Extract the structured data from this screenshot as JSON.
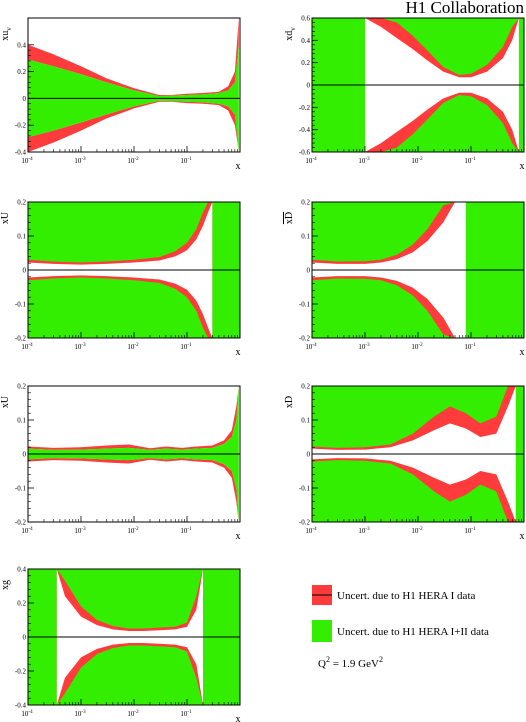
{
  "figure": {
    "title": "H1 Collaboration",
    "scale_label": "Q",
    "scale_sup": "2",
    "scale_value": " = 1.9 GeV",
    "scale_unit_sup": "2"
  },
  "legend": [
    {
      "label": "Uncert. due to H1 HERA I data",
      "color": "#ff3b3b"
    },
    {
      "label": "Uncert. due to H1 HERA I+II data",
      "color": "#33ee00"
    }
  ],
  "colors": {
    "hera1": "#ff3b3b",
    "hera12": "#33ee00",
    "axis": "#000000"
  },
  "chart_data": [
    {
      "type": "area",
      "ylabel": "xu",
      "ylabel_sub": "v",
      "xlabel": "x",
      "xscale": "log",
      "xlim": [
        0.0001,
        1
      ],
      "ylim": [
        -0.4,
        0.6
      ],
      "yticks": [
        {
          "v": -0.4,
          "t": "-0.4"
        },
        {
          "v": -0.2,
          "t": "-0.2"
        },
        {
          "v": 0,
          "t": "0"
        },
        {
          "v": 0.2,
          "t": "0.2"
        },
        {
          "v": 0.4,
          "t": "0.4"
        }
      ],
      "green_full": false,
      "x": [
        0.0001,
        0.0003,
        0.001,
        0.003,
        0.01,
        0.03,
        0.05,
        0.1,
        0.2,
        0.4,
        0.6,
        0.8,
        0.95
      ],
      "green_up": [
        0.29,
        0.24,
        0.18,
        0.12,
        0.06,
        0.018,
        0.02,
        0.025,
        0.03,
        0.04,
        0.06,
        0.12,
        0.4
      ],
      "red_up": [
        0.4,
        0.33,
        0.24,
        0.15,
        0.075,
        0.025,
        0.025,
        0.035,
        0.04,
        0.05,
        0.09,
        0.2,
        0.6
      ]
    },
    {
      "type": "area",
      "ylabel": "xd",
      "ylabel_sub": "v",
      "xlabel": "x",
      "xscale": "log",
      "xlim": [
        0.0001,
        1
      ],
      "ylim": [
        -0.6,
        0.6
      ],
      "yticks": [
        {
          "v": -0.6,
          "t": "-0.6"
        },
        {
          "v": -0.4,
          "t": "-0.4"
        },
        {
          "v": -0.2,
          "t": "-0.2"
        },
        {
          "v": 0,
          "t": "0"
        },
        {
          "v": 0.2,
          "t": "0.2"
        },
        {
          "v": 0.4,
          "t": "0.4"
        },
        {
          "v": 0.6,
          "t": "0.6"
        }
      ],
      "green_full": true,
      "x": [
        0.001,
        0.002,
        0.004,
        0.008,
        0.015,
        0.03,
        0.06,
        0.1,
        0.2,
        0.4,
        0.6,
        0.8
      ],
      "green_up": [
        0.6,
        0.52,
        0.42,
        0.32,
        0.22,
        0.12,
        0.07,
        0.07,
        0.12,
        0.24,
        0.4,
        0.6
      ],
      "red_up": [
        0.6,
        0.6,
        0.56,
        0.44,
        0.31,
        0.16,
        0.09,
        0.1,
        0.18,
        0.34,
        0.52,
        0.6
      ]
    },
    {
      "type": "area",
      "ylabel": "xU",
      "ylabel_bar": true,
      "xlabel": "x",
      "xscale": "log",
      "xlim": [
        0.0001,
        1
      ],
      "ylim": [
        -0.2,
        0.2
      ],
      "yticks": [
        {
          "v": -0.2,
          "t": "-0.2"
        },
        {
          "v": -0.1,
          "t": "-0.1"
        },
        {
          "v": 0,
          "t": "0"
        },
        {
          "v": 0.1,
          "t": "0.1"
        },
        {
          "v": 0.2,
          "t": "0.2"
        }
      ],
      "green_full": true,
      "x": [
        0.0001,
        0.0003,
        0.001,
        0.003,
        0.01,
        0.03,
        0.06,
        0.1,
        0.15,
        0.2,
        0.25,
        0.3
      ],
      "green_up": [
        0.022,
        0.018,
        0.016,
        0.018,
        0.022,
        0.028,
        0.04,
        0.058,
        0.09,
        0.13,
        0.17,
        0.2
      ],
      "red_up": [
        0.03,
        0.025,
        0.022,
        0.025,
        0.03,
        0.038,
        0.055,
        0.08,
        0.12,
        0.17,
        0.2,
        0.2
      ]
    },
    {
      "type": "area",
      "ylabel": "xD",
      "ylabel_bar": true,
      "xlabel": "x",
      "xscale": "log",
      "xlim": [
        0.0001,
        1
      ],
      "ylim": [
        -0.2,
        0.2
      ],
      "yticks": [
        {
          "v": -0.2,
          "t": "-0.2"
        },
        {
          "v": -0.1,
          "t": "-0.1"
        },
        {
          "v": 0,
          "t": "0"
        },
        {
          "v": 0.1,
          "t": "0.1"
        },
        {
          "v": 0.2,
          "t": "0.2"
        }
      ],
      "green_full": true,
      "x": [
        0.0001,
        0.0003,
        0.001,
        0.002,
        0.004,
        0.008,
        0.015,
        0.03,
        0.05,
        0.08
      ],
      "green_up": [
        0.022,
        0.018,
        0.018,
        0.022,
        0.032,
        0.052,
        0.085,
        0.14,
        0.2,
        0.2
      ],
      "red_up": [
        0.03,
        0.025,
        0.026,
        0.03,
        0.045,
        0.075,
        0.12,
        0.19,
        0.2,
        0.2
      ]
    },
    {
      "type": "area",
      "ylabel": "xU",
      "xlabel": "x",
      "xscale": "log",
      "xlim": [
        0.0001,
        1
      ],
      "ylim": [
        -0.2,
        0.2
      ],
      "yticks": [
        {
          "v": -0.2,
          "t": "-0.2"
        },
        {
          "v": -0.1,
          "t": "-0.1"
        },
        {
          "v": 0,
          "t": "0"
        },
        {
          "v": 0.1,
          "t": "0.1"
        },
        {
          "v": 0.2,
          "t": "0.2"
        }
      ],
      "green_full": false,
      "x": [
        0.0001,
        0.0003,
        0.001,
        0.003,
        0.008,
        0.02,
        0.04,
        0.08,
        0.15,
        0.3,
        0.5,
        0.7,
        0.85,
        0.95
      ],
      "green_up": [
        0.016,
        0.012,
        0.013,
        0.016,
        0.018,
        0.012,
        0.016,
        0.013,
        0.016,
        0.018,
        0.03,
        0.05,
        0.1,
        0.2
      ],
      "red_up": [
        0.022,
        0.018,
        0.02,
        0.025,
        0.028,
        0.017,
        0.022,
        0.018,
        0.022,
        0.025,
        0.04,
        0.07,
        0.14,
        0.2
      ]
    },
    {
      "type": "area",
      "ylabel": "xD",
      "xlabel": "x",
      "xscale": "log",
      "xlim": [
        0.0001,
        1
      ],
      "ylim": [
        -0.2,
        0.2
      ],
      "yticks": [
        {
          "v": -0.2,
          "t": "-0.2"
        },
        {
          "v": -0.1,
          "t": "-0.1"
        },
        {
          "v": 0,
          "t": "0"
        },
        {
          "v": 0.1,
          "t": "0.1"
        },
        {
          "v": 0.2,
          "t": "0.2"
        }
      ],
      "green_full": true,
      "x": [
        0.0001,
        0.0003,
        0.001,
        0.003,
        0.008,
        0.02,
        0.04,
        0.08,
        0.15,
        0.3,
        0.5,
        0.7
      ],
      "green_up": [
        0.016,
        0.012,
        0.013,
        0.02,
        0.04,
        0.07,
        0.09,
        0.075,
        0.05,
        0.06,
        0.14,
        0.2
      ],
      "red_up": [
        0.022,
        0.018,
        0.02,
        0.028,
        0.06,
        0.11,
        0.14,
        0.12,
        0.09,
        0.11,
        0.2,
        0.2
      ]
    },
    {
      "type": "area",
      "ylabel": "xg",
      "xlabel": "x",
      "xscale": "log",
      "xlim": [
        0.0001,
        1
      ],
      "ylim": [
        -0.4,
        0.4
      ],
      "yticks": [
        {
          "v": -0.4,
          "t": "-0.4"
        },
        {
          "v": -0.2,
          "t": "-0.2"
        },
        {
          "v": 0,
          "t": "0"
        },
        {
          "v": 0.2,
          "t": "0.2"
        },
        {
          "v": 0.4,
          "t": "0.4"
        }
      ],
      "green_full": true,
      "x": [
        0.00035,
        0.0005,
        0.001,
        0.002,
        0.004,
        0.008,
        0.015,
        0.03,
        0.06,
        0.1,
        0.15,
        0.2
      ],
      "green_up": [
        0.4,
        0.24,
        0.12,
        0.07,
        0.045,
        0.035,
        0.035,
        0.04,
        0.045,
        0.06,
        0.16,
        0.4
      ],
      "red_up": [
        0.4,
        0.33,
        0.18,
        0.1,
        0.065,
        0.05,
        0.05,
        0.055,
        0.06,
        0.085,
        0.24,
        0.4
      ]
    }
  ]
}
